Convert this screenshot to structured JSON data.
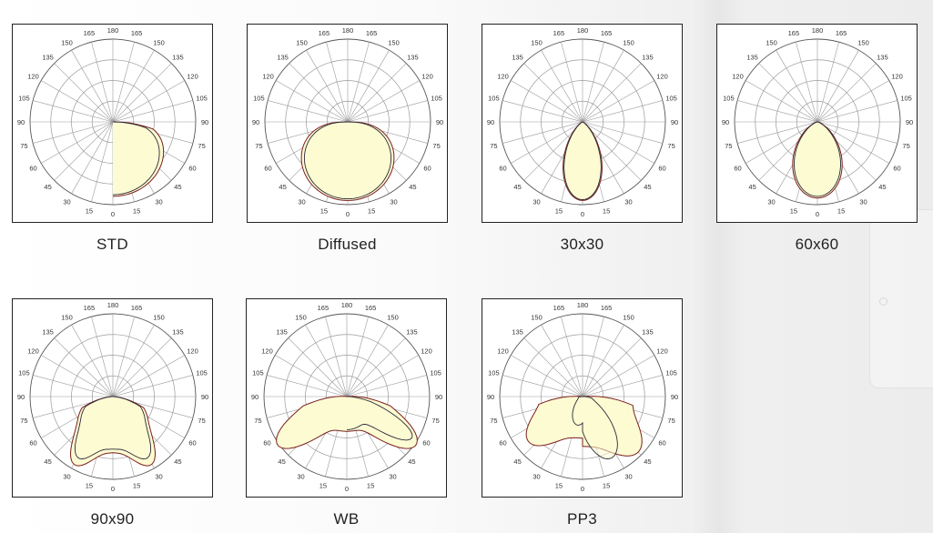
{
  "angle_labels": [
    "0",
    "15",
    "30",
    "45",
    "60",
    "75",
    "90",
    "105",
    "120",
    "135",
    "150",
    "165",
    "180",
    "165",
    "150",
    "135",
    "120",
    "105",
    "90",
    "75",
    "60",
    "45",
    "30",
    "15"
  ],
  "diagrams": [
    {
      "label": "STD",
      "shape": "std"
    },
    {
      "label": "Diffused",
      "shape": "diffused"
    },
    {
      "label": "30x30",
      "shape": "narrow"
    },
    {
      "label": "60x60",
      "shape": "medium"
    },
    {
      "label": "90x90",
      "shape": "wide"
    },
    {
      "label": "WB",
      "shape": "batwing"
    },
    {
      "label": "PP3",
      "shape": "asym"
    }
  ]
}
